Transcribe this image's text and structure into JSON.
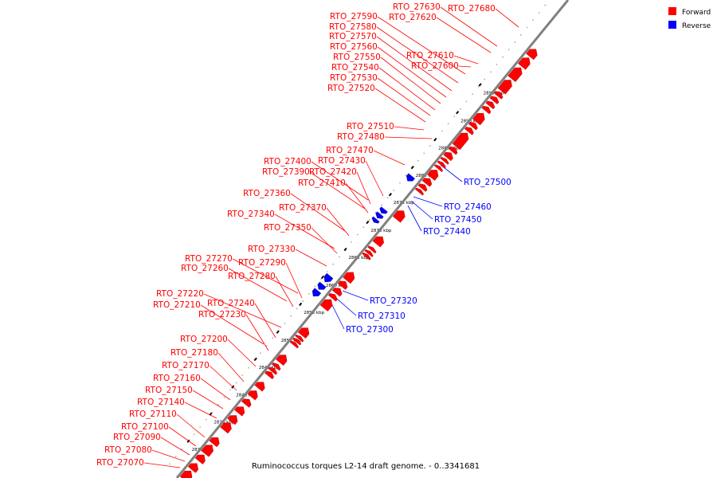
{
  "title": "Ruminococcus torques L2-14 draft genome. - 0..3341681",
  "legend": [
    {
      "label": "Forward",
      "color": "#ff0000"
    },
    {
      "label": "Reverse",
      "color": "#0000ff"
    }
  ],
  "colors": {
    "forward": "#ff0000",
    "reverse": "#0000ff",
    "axis": "#808080",
    "tick": "#000000"
  },
  "scale_ticks": [
    "2830 kbp",
    "2835 kbp",
    "2840 kbp",
    "2845 kbp",
    "2850 kbp",
    "2855 kbp",
    "2860 kbp",
    "2865 kbp",
    "2870 kbp",
    "2875 kbp",
    "2880 kbp",
    "2885 kbp",
    "2890 kbp",
    "2895 kbp"
  ],
  "genes": [
    {
      "id": "RTO_27070",
      "strand": "forward"
    },
    {
      "id": "RTO_27080",
      "strand": "forward"
    },
    {
      "id": "RTO_27090",
      "strand": "forward"
    },
    {
      "id": "RTO_27100",
      "strand": "forward"
    },
    {
      "id": "RTO_27110",
      "strand": "forward"
    },
    {
      "id": "RTO_27140",
      "strand": "forward"
    },
    {
      "id": "RTO_27150",
      "strand": "forward"
    },
    {
      "id": "RTO_27160",
      "strand": "forward"
    },
    {
      "id": "RTO_27170",
      "strand": "forward"
    },
    {
      "id": "RTO_27180",
      "strand": "forward"
    },
    {
      "id": "RTO_27200",
      "strand": "forward"
    },
    {
      "id": "RTO_27230",
      "strand": "forward"
    },
    {
      "id": "RTO_27210",
      "strand": "forward"
    },
    {
      "id": "RTO_27240",
      "strand": "forward"
    },
    {
      "id": "RTO_27220",
      "strand": "forward"
    },
    {
      "id": "RTO_27280",
      "strand": "forward"
    },
    {
      "id": "RTO_27260",
      "strand": "forward"
    },
    {
      "id": "RTO_27290",
      "strand": "forward"
    },
    {
      "id": "RTO_27270",
      "strand": "forward"
    },
    {
      "id": "RTO_27330",
      "strand": "forward"
    },
    {
      "id": "RTO_27350",
      "strand": "forward"
    },
    {
      "id": "RTO_27340",
      "strand": "forward"
    },
    {
      "id": "RTO_27370",
      "strand": "forward"
    },
    {
      "id": "RTO_27360",
      "strand": "forward"
    },
    {
      "id": "RTO_27410",
      "strand": "forward"
    },
    {
      "id": "RTO_27390",
      "strand": "forward"
    },
    {
      "id": "RTO_27420",
      "strand": "forward"
    },
    {
      "id": "RTO_27400",
      "strand": "forward"
    },
    {
      "id": "RTO_27430",
      "strand": "forward"
    },
    {
      "id": "RTO_27470",
      "strand": "forward"
    },
    {
      "id": "RTO_27480",
      "strand": "forward"
    },
    {
      "id": "RTO_27510",
      "strand": "forward"
    },
    {
      "id": "RTO_27520",
      "strand": "forward"
    },
    {
      "id": "RTO_27530",
      "strand": "forward"
    },
    {
      "id": "RTO_27540",
      "strand": "forward"
    },
    {
      "id": "RTO_27550",
      "strand": "forward"
    },
    {
      "id": "RTO_27560",
      "strand": "forward"
    },
    {
      "id": "RTO_27570",
      "strand": "forward"
    },
    {
      "id": "RTO_27580",
      "strand": "forward"
    },
    {
      "id": "RTO_27590",
      "strand": "forward"
    },
    {
      "id": "RTO_27600",
      "strand": "forward"
    },
    {
      "id": "RTO_27610",
      "strand": "forward"
    },
    {
      "id": "RTO_27620",
      "strand": "forward"
    },
    {
      "id": "RTO_27630",
      "strand": "forward"
    },
    {
      "id": "RTO_27680",
      "strand": "forward"
    },
    {
      "id": "RTO_27300",
      "strand": "reverse"
    },
    {
      "id": "RTO_27310",
      "strand": "reverse"
    },
    {
      "id": "RTO_27320",
      "strand": "reverse"
    },
    {
      "id": "RTO_27440",
      "strand": "reverse"
    },
    {
      "id": "RTO_27450",
      "strand": "reverse"
    },
    {
      "id": "RTO_27460",
      "strand": "reverse"
    },
    {
      "id": "RTO_27500",
      "strand": "reverse"
    }
  ]
}
